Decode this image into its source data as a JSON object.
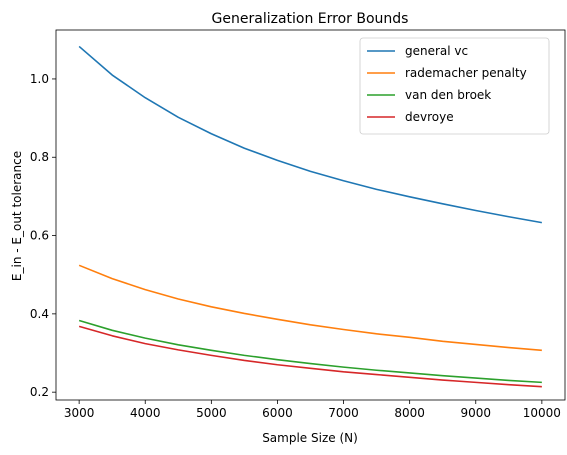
{
  "chart_data": {
    "type": "line",
    "title": "Generalization Error Bounds",
    "xlabel": "Sample Size (N)",
    "ylabel": "E_in - E_out tolerance",
    "xlim": [
      2650,
      10350
    ],
    "ylim": [
      0.18,
      1.125
    ],
    "xticks": [
      3000,
      4000,
      5000,
      6000,
      7000,
      8000,
      9000,
      10000
    ],
    "yticks": [
      0.2,
      0.4,
      0.6,
      0.8,
      1.0
    ],
    "ytick_labels": [
      "0.2",
      "0.4",
      "0.6",
      "0.8",
      "1.0"
    ],
    "grid": false,
    "legend_position": "top-right",
    "x": [
      3000,
      3500,
      4000,
      4500,
      5000,
      5500,
      6000,
      6500,
      7000,
      7500,
      8000,
      8500,
      9000,
      9500,
      10000
    ],
    "series": [
      {
        "name": "general vc",
        "color": "#1f77b4",
        "values": [
          1.083,
          1.01,
          0.952,
          0.902,
          0.86,
          0.823,
          0.792,
          0.764,
          0.74,
          0.718,
          0.699,
          0.681,
          0.664,
          0.648,
          0.633
        ]
      },
      {
        "name": "rademacher penalty",
        "color": "#ff7f0e",
        "values": [
          0.524,
          0.49,
          0.462,
          0.438,
          0.418,
          0.401,
          0.386,
          0.372,
          0.36,
          0.349,
          0.34,
          0.33,
          0.322,
          0.314,
          0.307
        ]
      },
      {
        "name": "van den broek",
        "color": "#2ca02c",
        "values": [
          0.383,
          0.358,
          0.338,
          0.321,
          0.307,
          0.294,
          0.283,
          0.273,
          0.264,
          0.256,
          0.249,
          0.242,
          0.236,
          0.23,
          0.225
        ]
      },
      {
        "name": "devroye",
        "color": "#d62728",
        "values": [
          0.368,
          0.344,
          0.324,
          0.308,
          0.294,
          0.281,
          0.27,
          0.261,
          0.252,
          0.245,
          0.238,
          0.231,
          0.225,
          0.219,
          0.214
        ]
      }
    ]
  }
}
